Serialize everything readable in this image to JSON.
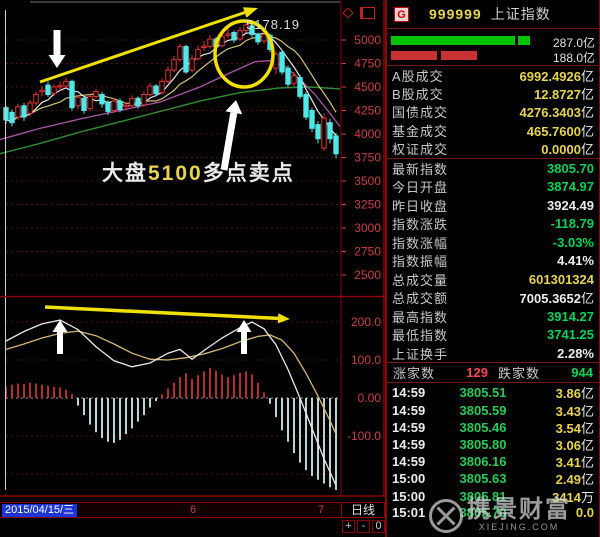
{
  "header": {
    "icon": "G",
    "code": "999999",
    "name": "上证指数"
  },
  "volume_bars": {
    "buy_value": "287.0亿",
    "sell_value": "188.0亿"
  },
  "stats1": [
    {
      "label": "A股成交",
      "value": "6992.4926",
      "suffix": "亿",
      "color": "yellow"
    },
    {
      "label": "B股成交",
      "value": "12.8727",
      "suffix": "亿",
      "color": "yellow"
    },
    {
      "label": "国债成交",
      "value": "4276.3403",
      "suffix": "亿",
      "color": "yellow"
    },
    {
      "label": "基金成交",
      "value": "465.7600",
      "suffix": "亿",
      "color": "yellow"
    },
    {
      "label": "权证成交",
      "value": "0.0000",
      "suffix": "亿",
      "color": "yellow"
    }
  ],
  "stats2": [
    {
      "label": "最新指数",
      "value": "3805.70",
      "suffix": "",
      "color": "green"
    },
    {
      "label": "今日开盘",
      "value": "3874.97",
      "suffix": "",
      "color": "green"
    },
    {
      "label": "昨日收盘",
      "value": "3924.49",
      "suffix": "",
      "color": "white"
    },
    {
      "label": "指数涨跌",
      "value": "-118.79",
      "suffix": "",
      "color": "green"
    },
    {
      "label": "指数涨幅",
      "value": "-3.03%",
      "suffix": "",
      "color": "green"
    },
    {
      "label": "指数振幅",
      "value": "4.41%",
      "suffix": "",
      "color": "white"
    },
    {
      "label": "总成交量",
      "value": "601301324",
      "suffix": "",
      "color": "yellow"
    },
    {
      "label": "总成交额",
      "value": "7005.3652",
      "suffix": "亿",
      "color": "white"
    },
    {
      "label": "最高指数",
      "value": "3914.27",
      "suffix": "",
      "color": "green"
    },
    {
      "label": "最低指数",
      "value": "3741.25",
      "suffix": "",
      "color": "green"
    },
    {
      "label": "上证换手",
      "value": "2.28%",
      "suffix": "",
      "color": "white"
    }
  ],
  "breadth": {
    "up_label": "涨家数",
    "up_value": "129",
    "down_label": "跌家数",
    "down_value": "944"
  },
  "ticks": [
    {
      "time": "14:59",
      "price": "3805.51",
      "amount": "3.86",
      "suffix": "亿"
    },
    {
      "time": "14:59",
      "price": "3805.59",
      "amount": "3.43",
      "suffix": "亿"
    },
    {
      "time": "14:59",
      "price": "3805.46",
      "amount": "3.54",
      "suffix": "亿"
    },
    {
      "time": "14:59",
      "price": "3805.80",
      "amount": "3.06",
      "suffix": "亿"
    },
    {
      "time": "14:59",
      "price": "3806.16",
      "amount": "3.41",
      "suffix": "亿"
    },
    {
      "time": "15:00",
      "price": "3805.63",
      "amount": "2.49",
      "suffix": "亿"
    },
    {
      "time": "15:00",
      "price": "3805.81",
      "amount": "3414",
      "suffix": "万"
    },
    {
      "time": "15:01",
      "price": "3805.70",
      "amount": "0.0",
      "suffix": ""
    }
  ],
  "watermark": {
    "name": "携景财富",
    "domain": "XIEJING.COM"
  },
  "bottom_bar": {
    "date": "2015/04/15/三",
    "month_left": "6",
    "month_right": "7",
    "period": "日线",
    "zoom_in": "+",
    "zoom_out": "-",
    "zoom_reset": "0"
  },
  "annotations": {
    "peak_label": "5178.19",
    "sell_text_pre": "大盘",
    "sell_text_num": "5100",
    "sell_text_post": "多点卖点"
  },
  "colors": {
    "up": "#e83030",
    "down": "#4ee8e8",
    "ma5": "#e8e8e8",
    "ma10": "#cfc470",
    "ma20": "#a855a8",
    "ma60": "#2f8f2f",
    "grid": "#4d0f0f",
    "axis_text": "#cd3d44",
    "annotation": "#f0e000",
    "macd_pos": "#c83232",
    "macd_neg": "#cfecec",
    "dif": "#e8e8e8",
    "dea": "#d4b870",
    "border": "#8b0000"
  },
  "chart_data": [
    {
      "type": "candlestick",
      "title": "上证指数 日线",
      "ylim": [
        2450,
        5430
      ],
      "yticks": [
        {
          "label": "5000",
          "value": 5000
        },
        {
          "label": "4750",
          "value": 4750
        },
        {
          "label": "4500",
          "value": 4500
        },
        {
          "label": "4250",
          "value": 4250
        },
        {
          "label": "4000",
          "value": 4000
        },
        {
          "label": "3750",
          "value": 3750
        },
        {
          "label": "3500",
          "value": 3500
        },
        {
          "label": "3250",
          "value": 3250
        },
        {
          "label": "3000",
          "value": 3000
        },
        {
          "label": "2750",
          "value": 2750
        },
        {
          "label": "2500",
          "value": 2500
        }
      ],
      "candles_ohlc_lh": [
        [
          4280,
          4150,
          4110,
          4300
        ],
        [
          4230,
          4120,
          4080,
          4260
        ],
        [
          4180,
          4290,
          4150,
          4320
        ],
        [
          4300,
          4180,
          4140,
          4330
        ],
        [
          4220,
          4330,
          4190,
          4360
        ],
        [
          4330,
          4420,
          4300,
          4450
        ],
        [
          4450,
          4465,
          4400,
          4510
        ],
        [
          4520,
          4420,
          4395,
          4560
        ],
        [
          4430,
          4500,
          4405,
          4530
        ],
        [
          4500,
          4515,
          4460,
          4560
        ],
        [
          4510,
          4560,
          4490,
          4600
        ],
        [
          4560,
          4280,
          4250,
          4580
        ],
        [
          4300,
          4390,
          4260,
          4420
        ],
        [
          4380,
          4250,
          4215,
          4400
        ],
        [
          4270,
          4400,
          4245,
          4430
        ],
        [
          4400,
          4450,
          4375,
          4480
        ],
        [
          4420,
          4320,
          4280,
          4450
        ],
        [
          4330,
          4240,
          4200,
          4360
        ],
        [
          4250,
          4350,
          4225,
          4380
        ],
        [
          4350,
          4260,
          4230,
          4380
        ],
        [
          4290,
          4305,
          4255,
          4340
        ],
        [
          4300,
          4380,
          4280,
          4410
        ],
        [
          4380,
          4300,
          4270,
          4400
        ],
        [
          4310,
          4420,
          4290,
          4450
        ],
        [
          4420,
          4510,
          4400,
          4540
        ],
        [
          4510,
          4430,
          4400,
          4530
        ],
        [
          4440,
          4560,
          4420,
          4590
        ],
        [
          4560,
          4680,
          4540,
          4720
        ],
        [
          4680,
          4790,
          4655,
          4830
        ],
        [
          4790,
          4930,
          4770,
          4960
        ],
        [
          4930,
          4660,
          4640,
          4950
        ],
        [
          4680,
          4800,
          4660,
          4840
        ],
        [
          4800,
          4900,
          4780,
          4940
        ],
        [
          4920,
          4935,
          4880,
          4990
        ],
        [
          4930,
          5010,
          4910,
          5050
        ],
        [
          5010,
          4930,
          4900,
          5030
        ],
        [
          4940,
          5040,
          4920,
          5080
        ],
        [
          5050,
          5065,
          5020,
          5120
        ],
        [
          5080,
          5000,
          4970,
          5100
        ],
        [
          5010,
          5100,
          4990,
          5140
        ],
        [
          5100,
          5160,
          5080,
          5178
        ],
        [
          5150,
          5060,
          5030,
          5170
        ],
        [
          5060,
          4980,
          4950,
          5080
        ],
        [
          4990,
          5060,
          4960,
          5100
        ],
        [
          5050,
          4900,
          4870,
          5070
        ],
        [
          4700,
          4850,
          4640,
          4880
        ],
        [
          4870,
          4660,
          4630,
          4890
        ],
        [
          4700,
          4530,
          4500,
          4730
        ],
        [
          4540,
          4620,
          4500,
          4660
        ],
        [
          4600,
          4400,
          4370,
          4630
        ],
        [
          4420,
          4180,
          4150,
          4450
        ],
        [
          4250,
          4060,
          4020,
          4280
        ],
        [
          4100,
          3950,
          3900,
          4140
        ],
        [
          3850,
          4170,
          3820,
          4220
        ],
        [
          4120,
          3950,
          3900,
          4160
        ],
        [
          3980,
          3790,
          3741,
          4010
        ]
      ],
      "ma20_points": [
        [
          0,
          3940
        ],
        [
          40,
          4060
        ],
        [
          80,
          4160
        ],
        [
          120,
          4250
        ],
        [
          160,
          4340
        ],
        [
          200,
          4500
        ],
        [
          230,
          4650
        ],
        [
          255,
          4770
        ],
        [
          270,
          4780
        ],
        [
          285,
          4720
        ],
        [
          300,
          4580
        ],
        [
          315,
          4420
        ],
        [
          330,
          4220
        ],
        [
          340,
          4080
        ]
      ],
      "ma60_points": [
        [
          0,
          3790
        ],
        [
          40,
          3900
        ],
        [
          80,
          4020
        ],
        [
          120,
          4130
        ],
        [
          160,
          4240
        ],
        [
          200,
          4350
        ],
        [
          240,
          4440
        ],
        [
          280,
          4490
        ],
        [
          310,
          4500
        ],
        [
          340,
          4480
        ]
      ],
      "peak_value": 5178.19
    },
    {
      "type": "macd",
      "yticks": [
        {
          "label": "200.0",
          "value": 200
        },
        {
          "label": "100.0",
          "value": 100
        },
        {
          "label": "0.00",
          "value": 0
        },
        {
          "label": "-100.0",
          "value": -100
        }
      ],
      "extra_gridlines": [
        -200
      ],
      "bars": [
        30,
        35,
        38,
        36,
        40,
        38,
        35,
        32,
        30,
        28,
        22,
        10,
        -20,
        -45,
        -70,
        -90,
        -105,
        -115,
        -118,
        -110,
        -95,
        -80,
        -62,
        -45,
        -25,
        -8,
        10,
        25,
        40,
        55,
        65,
        50,
        60,
        70,
        79,
        72,
        62,
        55,
        60,
        66,
        70,
        62,
        40,
        15,
        -15,
        -50,
        -85,
        -115,
        -145,
        -170,
        -190,
        -205,
        -215,
        -225,
        -235,
        -242
      ],
      "dif_points": [
        [
          0,
          150
        ],
        [
          3,
          175
        ],
        [
          6,
          195
        ],
        [
          9,
          205
        ],
        [
          12,
          180
        ],
        [
          15,
          135
        ],
        [
          18,
          98
        ],
        [
          21,
          82
        ],
        [
          24,
          92
        ],
        [
          27,
          118
        ],
        [
          29,
          128
        ],
        [
          31,
          102
        ],
        [
          33,
          125
        ],
        [
          36,
          158
        ],
        [
          39,
          185
        ],
        [
          41,
          200
        ],
        [
          43,
          182
        ],
        [
          45,
          140
        ],
        [
          47,
          75
        ],
        [
          49,
          0
        ],
        [
          51,
          -80
        ],
        [
          53,
          -160
        ],
        [
          55,
          -230
        ]
      ],
      "dea_points": [
        [
          0,
          128
        ],
        [
          3,
          142
        ],
        [
          6,
          158
        ],
        [
          9,
          170
        ],
        [
          12,
          176
        ],
        [
          15,
          164
        ],
        [
          18,
          142
        ],
        [
          21,
          118
        ],
        [
          24,
          102
        ],
        [
          27,
          100
        ],
        [
          30,
          106
        ],
        [
          33,
          116
        ],
        [
          36,
          130
        ],
        [
          39,
          148
        ],
        [
          42,
          162
        ],
        [
          44,
          166
        ],
        [
          46,
          152
        ],
        [
          48,
          118
        ],
        [
          50,
          65
        ],
        [
          52,
          5
        ],
        [
          54,
          -60
        ],
        [
          55,
          -95
        ]
      ]
    }
  ]
}
